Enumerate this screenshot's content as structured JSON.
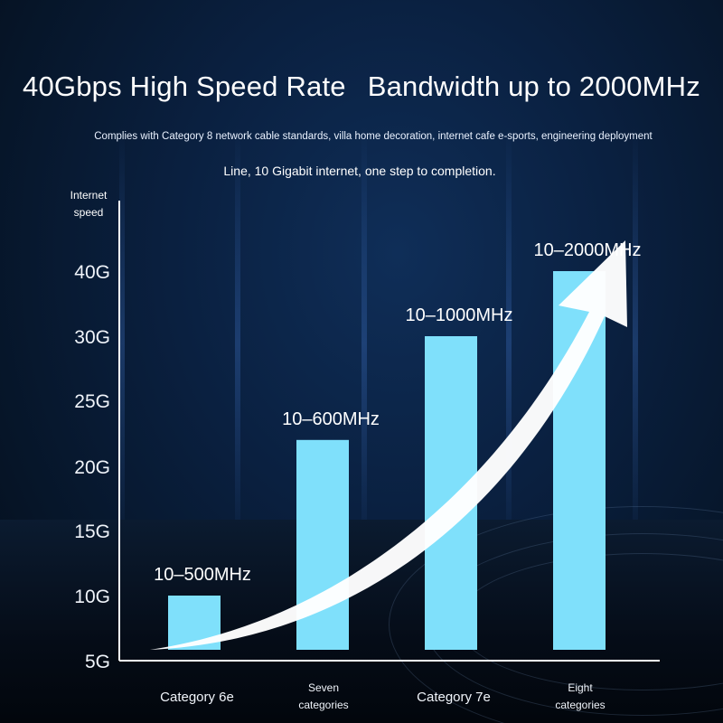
{
  "header": {
    "title_left": "40Gbps High Speed Rate",
    "title_right": "Bandwidth up to 2000MHz",
    "subtitle_line1": "Complies with Category 8 network cable standards, villa home decoration, internet cafe e-sports, engineering deployment",
    "subtitle_line2": "Line, 10 Gigabit internet, one step to completion."
  },
  "chart_data": {
    "type": "bar",
    "ylabel": [
      "Internet",
      "speed"
    ],
    "y_ticks": [
      "5G",
      "10G",
      "15G",
      "20G",
      "25G",
      "30G",
      "40G"
    ],
    "categories": [
      [
        "Category 6e"
      ],
      [
        "Seven",
        "categories"
      ],
      [
        "Category 7e"
      ],
      [
        "Eight",
        "categories"
      ]
    ],
    "values": [
      10,
      22,
      30,
      40
    ],
    "data_labels": [
      "10–500MHz",
      "10–600MHz",
      "10–1000MHz",
      "10–2000MHz"
    ],
    "grid": false,
    "trend_arrow": true,
    "colors": {
      "bar": "#7fe0fb",
      "axis": "#ffffff",
      "arrow": "#ffffff"
    }
  }
}
